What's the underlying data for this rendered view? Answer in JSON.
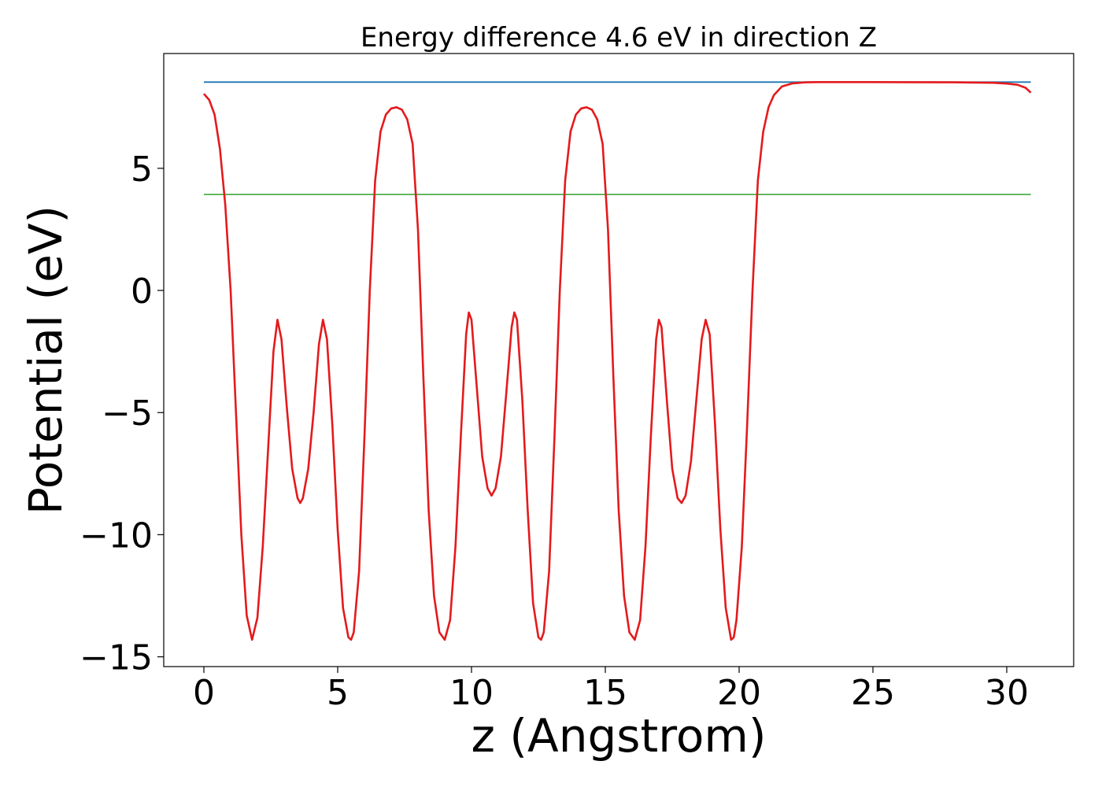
{
  "chart_data": {
    "type": "line",
    "title": "Energy difference 4.6 eV in direction Z",
    "xlabel": "z (Angstrom)",
    "ylabel": "Potential (eV)",
    "xlim": [
      -1.5,
      32.5
    ],
    "ylim": [
      -15.4,
      9.7
    ],
    "xticks": [
      0,
      5,
      10,
      15,
      20,
      25,
      30
    ],
    "xtick_labels": [
      "0",
      "5",
      "10",
      "15",
      "20",
      "25",
      "30"
    ],
    "yticks": [
      -15,
      -10,
      -5,
      0,
      5
    ],
    "ytick_labels": [
      "−15",
      "−10",
      "−5",
      "0",
      "5"
    ],
    "grid": false,
    "legend": false,
    "series": [
      {
        "color": "#e41a1c",
        "points": [
          [
            0.0,
            8.05
          ],
          [
            0.2,
            7.8
          ],
          [
            0.4,
            7.2
          ],
          [
            0.6,
            5.8
          ],
          [
            0.8,
            3.5
          ],
          [
            1.0,
            0.0
          ],
          [
            1.2,
            -5.0
          ],
          [
            1.4,
            -10.0
          ],
          [
            1.6,
            -13.3
          ],
          [
            1.8,
            -14.3
          ],
          [
            2.0,
            -13.4
          ],
          [
            2.2,
            -10.5
          ],
          [
            2.4,
            -6.5
          ],
          [
            2.6,
            -2.5
          ],
          [
            2.75,
            -1.2
          ],
          [
            2.9,
            -2.0
          ],
          [
            3.1,
            -4.8
          ],
          [
            3.3,
            -7.3
          ],
          [
            3.5,
            -8.5
          ],
          [
            3.6,
            -8.7
          ],
          [
            3.7,
            -8.5
          ],
          [
            3.9,
            -7.3
          ],
          [
            4.1,
            -5.0
          ],
          [
            4.3,
            -2.2
          ],
          [
            4.45,
            -1.2
          ],
          [
            4.6,
            -2.0
          ],
          [
            4.8,
            -5.5
          ],
          [
            5.0,
            -9.8
          ],
          [
            5.2,
            -13.0
          ],
          [
            5.4,
            -14.2
          ],
          [
            5.5,
            -14.3
          ],
          [
            5.6,
            -14.0
          ],
          [
            5.8,
            -11.5
          ],
          [
            6.0,
            -6.0
          ],
          [
            6.2,
            0.0
          ],
          [
            6.4,
            4.5
          ],
          [
            6.6,
            6.5
          ],
          [
            6.8,
            7.2
          ],
          [
            7.0,
            7.45
          ],
          [
            7.2,
            7.5
          ],
          [
            7.4,
            7.4
          ],
          [
            7.6,
            7.0
          ],
          [
            7.8,
            6.0
          ],
          [
            8.0,
            2.5
          ],
          [
            8.2,
            -3.5
          ],
          [
            8.4,
            -9.0
          ],
          [
            8.6,
            -12.5
          ],
          [
            8.8,
            -14.0
          ],
          [
            9.0,
            -14.3
          ],
          [
            9.2,
            -13.5
          ],
          [
            9.4,
            -10.5
          ],
          [
            9.6,
            -6.0
          ],
          [
            9.8,
            -1.8
          ],
          [
            9.9,
            -0.9
          ],
          [
            10.0,
            -1.2
          ],
          [
            10.2,
            -4.0
          ],
          [
            10.4,
            -6.8
          ],
          [
            10.6,
            -8.1
          ],
          [
            10.75,
            -8.4
          ],
          [
            10.9,
            -8.1
          ],
          [
            11.1,
            -6.8
          ],
          [
            11.3,
            -4.2
          ],
          [
            11.5,
            -1.5
          ],
          [
            11.6,
            -0.9
          ],
          [
            11.7,
            -1.2
          ],
          [
            11.9,
            -4.5
          ],
          [
            12.1,
            -9.0
          ],
          [
            12.3,
            -12.8
          ],
          [
            12.5,
            -14.2
          ],
          [
            12.6,
            -14.3
          ],
          [
            12.7,
            -14.0
          ],
          [
            12.9,
            -11.5
          ],
          [
            13.1,
            -6.0
          ],
          [
            13.3,
            0.0
          ],
          [
            13.5,
            4.5
          ],
          [
            13.7,
            6.5
          ],
          [
            13.9,
            7.2
          ],
          [
            14.1,
            7.45
          ],
          [
            14.3,
            7.5
          ],
          [
            14.5,
            7.4
          ],
          [
            14.7,
            7.0
          ],
          [
            14.9,
            6.0
          ],
          [
            15.1,
            2.5
          ],
          [
            15.3,
            -3.5
          ],
          [
            15.5,
            -9.0
          ],
          [
            15.7,
            -12.5
          ],
          [
            15.9,
            -14.0
          ],
          [
            16.1,
            -14.3
          ],
          [
            16.3,
            -13.5
          ],
          [
            16.5,
            -10.5
          ],
          [
            16.7,
            -6.0
          ],
          [
            16.9,
            -2.0
          ],
          [
            17.0,
            -1.2
          ],
          [
            17.1,
            -1.5
          ],
          [
            17.3,
            -4.5
          ],
          [
            17.5,
            -7.3
          ],
          [
            17.7,
            -8.5
          ],
          [
            17.85,
            -8.7
          ],
          [
            18.0,
            -8.4
          ],
          [
            18.2,
            -7.0
          ],
          [
            18.4,
            -4.5
          ],
          [
            18.6,
            -2.0
          ],
          [
            18.75,
            -1.2
          ],
          [
            18.9,
            -1.8
          ],
          [
            19.1,
            -5.5
          ],
          [
            19.3,
            -9.8
          ],
          [
            19.5,
            -13.0
          ],
          [
            19.7,
            -14.3
          ],
          [
            19.8,
            -14.2
          ],
          [
            19.9,
            -13.5
          ],
          [
            20.1,
            -10.5
          ],
          [
            20.3,
            -5.5
          ],
          [
            20.5,
            0.0
          ],
          [
            20.7,
            4.5
          ],
          [
            20.9,
            6.5
          ],
          [
            21.1,
            7.5
          ],
          [
            21.3,
            8.0
          ],
          [
            21.6,
            8.35
          ],
          [
            22.0,
            8.48
          ],
          [
            22.5,
            8.52
          ],
          [
            23.0,
            8.53
          ],
          [
            25.0,
            8.53
          ],
          [
            28.0,
            8.52
          ],
          [
            29.5,
            8.5
          ],
          [
            30.0,
            8.47
          ],
          [
            30.4,
            8.42
          ],
          [
            30.7,
            8.3
          ],
          [
            30.9,
            8.1
          ]
        ]
      },
      {
        "color": "#1f77b4",
        "points": [
          [
            0.0,
            8.53
          ],
          [
            30.9,
            8.53
          ]
        ]
      },
      {
        "color": "#4daf4a",
        "points": [
          [
            0.0,
            3.93
          ],
          [
            30.9,
            3.93
          ]
        ]
      }
    ]
  }
}
